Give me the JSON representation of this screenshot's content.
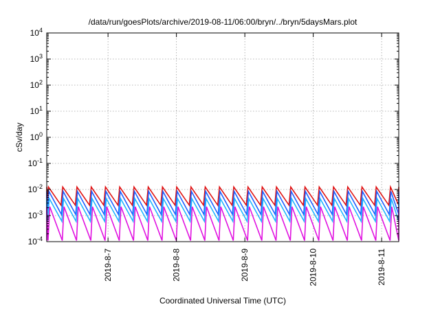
{
  "chart_data": {
    "type": "line",
    "title": "/data/run/goesPlots/archive/2019-08-11/06:00/bryn/../bryn/5daysMars.plot",
    "xlabel": "Coordinated Universal Time (UTC)",
    "ylabel": "cSv/day",
    "x_scale": "time",
    "y_scale": "log",
    "xlim": [
      "2019-08-06T02:30",
      "2019-08-11T06:00"
    ],
    "ylim": [
      0.0001,
      10000
    ],
    "grid": true,
    "legend": "none",
    "x_ticks": [
      {
        "x": "2019-08-07T00:00",
        "label": "2019-8-7"
      },
      {
        "x": "2019-08-08T00:00",
        "label": "2019-8-8"
      },
      {
        "x": "2019-08-09T00:00",
        "label": "2019-8-9"
      },
      {
        "x": "2019-08-10T00:00",
        "label": "2019-8-10"
      },
      {
        "x": "2019-08-11T00:00",
        "label": "2019-8-11"
      }
    ],
    "y_ticks": [
      {
        "value": 0.0001,
        "base": "10",
        "exp": "-4"
      },
      {
        "value": 0.001,
        "base": "10",
        "exp": "-3"
      },
      {
        "value": 0.01,
        "base": "10",
        "exp": "-2"
      },
      {
        "value": 0.1,
        "base": "10",
        "exp": "-1"
      },
      {
        "value": 1,
        "base": "10",
        "exp": "0"
      },
      {
        "value": 10,
        "base": "10",
        "exp": "1"
      },
      {
        "value": 100,
        "base": "10",
        "exp": "2"
      },
      {
        "value": 1000,
        "base": "10",
        "exp": "3"
      },
      {
        "value": 10000,
        "base": "10",
        "exp": "4"
      }
    ],
    "pattern": {
      "period_hours": 5,
      "phase_start": "2019-08-06T02:30"
    },
    "series": [
      {
        "color": "#e01010",
        "peak": 0.0125,
        "trough": 0.0025
      },
      {
        "color": "#2060ff",
        "peak": 0.0085,
        "trough": 0.0011
      },
      {
        "color": "#20b4ff",
        "peak": 0.0045,
        "trough": 0.0006
      },
      {
        "color": "#e010e0",
        "peak": 0.0022,
        "trough": 0.00011
      }
    ]
  }
}
